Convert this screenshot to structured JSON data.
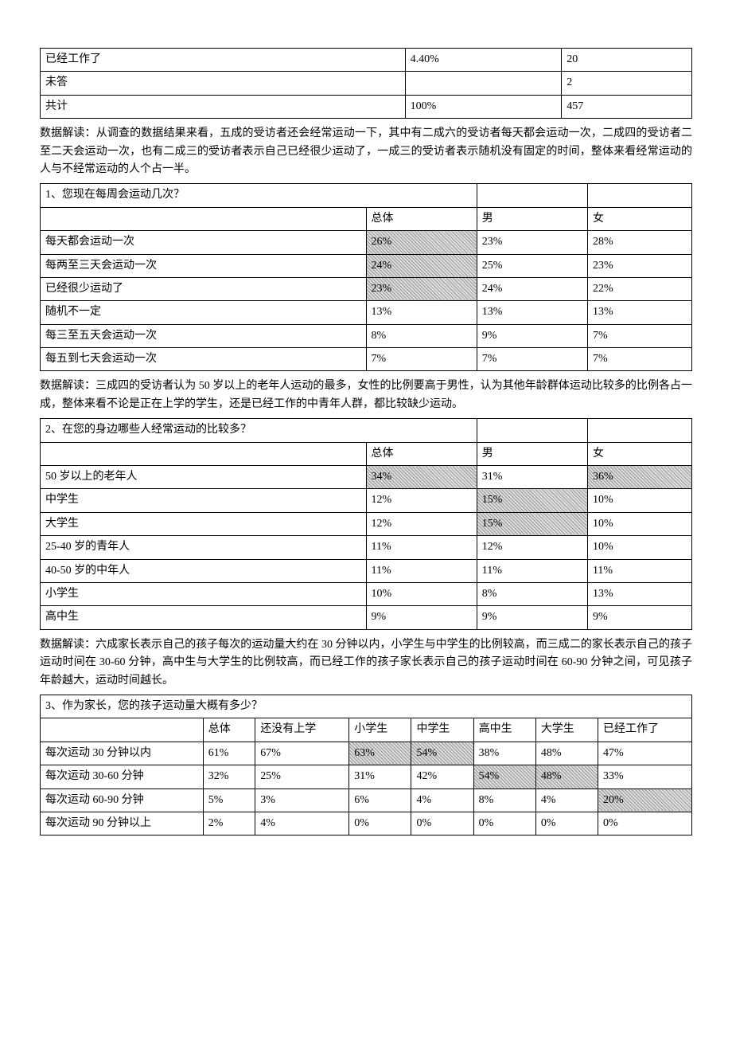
{
  "table1": {
    "rows": [
      {
        "c1": "已经工作了",
        "c2": "4.40%",
        "c3": "20"
      },
      {
        "c1": "未答",
        "c2": "",
        "c3": "2"
      },
      {
        "c1": "共计",
        "c2": "100%",
        "c3": "457"
      }
    ]
  },
  "para1": "数据解读：从调查的数据结果来看，五成的受访者还会经常运动一下，其中有二成六的受访者每天都会运动一次，二成四的受访者二至二天会运动一次，也有二成三的受访者表示自己已经很少运动了，一成三的受访者表示随机没有固定的时间，整体来看经常运动的人与不经常运动的人个占一半。",
  "table2": {
    "title": "1、您现在每周会运动几次？",
    "header": {
      "c2": "总体",
      "c3": "男",
      "c4": "女"
    },
    "rows": [
      {
        "c1": "每天都会运动一次",
        "c2": "26%",
        "c3": "23%",
        "c4": "28%",
        "shade": [
          "c2"
        ]
      },
      {
        "c1": "每两至三天会运动一次",
        "c2": "24%",
        "c3": "25%",
        "c4": "23%",
        "shade": [
          "c2"
        ]
      },
      {
        "c1": "已经很少运动了",
        "c2": "23%",
        "c3": "24%",
        "c4": "22%",
        "shade": [
          "c2"
        ]
      },
      {
        "c1": "随机不一定",
        "c2": "13%",
        "c3": "13%",
        "c4": "13%",
        "shade": []
      },
      {
        "c1": "每三至五天会运动一次",
        "c2": "8%",
        "c3": "9%",
        "c4": "7%",
        "shade": []
      },
      {
        "c1": "每五到七天会运动一次",
        "c2": "7%",
        "c3": "7%",
        "c4": "7%",
        "shade": []
      }
    ]
  },
  "para2": "数据解读：三成四的受访者认为 50 岁以上的老年人运动的最多，女性的比例要高于男性，认为其他年龄群体运动比较多的比例各占一成，整体来看不论是正在上学的学生，还是已经工作的中青年人群，都比较缺少运动。",
  "table3": {
    "title": "2、在您的身边哪些人经常运动的比较多？",
    "header": {
      "c2": "总体",
      "c3": "男",
      "c4": "女"
    },
    "rows": [
      {
        "c1": "50 岁以上的老年人",
        "c2": "34%",
        "c3": "31%",
        "c4": "36%",
        "shade": [
          "c2",
          "c4"
        ]
      },
      {
        "c1": "中学生",
        "c2": "12%",
        "c3": "15%",
        "c4": "10%",
        "shade": [
          "c3"
        ]
      },
      {
        "c1": "大学生",
        "c2": "12%",
        "c3": "15%",
        "c4": "10%",
        "shade": [
          "c3"
        ]
      },
      {
        "c1": "25-40 岁的青年人",
        "c2": "11%",
        "c3": "12%",
        "c4": "10%",
        "shade": []
      },
      {
        "c1": "40-50 岁的中年人",
        "c2": "11%",
        "c3": "11%",
        "c4": "11%",
        "shade": []
      },
      {
        "c1": "小学生",
        "c2": "10%",
        "c3": "8%",
        "c4": "13%",
        "shade": []
      },
      {
        "c1": "高中生",
        "c2": "9%",
        "c3": "9%",
        "c4": "9%",
        "shade": []
      }
    ]
  },
  "para3": "数据解读：六成家长表示自己的孩子每次的运动量大约在 30 分钟以内，小学生与中学生的比例较高，而三成二的家长表示自己的孩子运动时间在 30-60 分钟，高中生与大学生的比例较高，而已经工作的孩子家长表示自己的孩子运动时间在 60-90 分钟之间，可见孩子年龄越大，运动时间越长。",
  "table4": {
    "title": "3、作为家长，您的孩子运动量大概有多少？",
    "header": [
      "",
      "总体",
      "还没有上学",
      "小学生",
      "中学生",
      "高中生",
      "大学生",
      "已经工作了"
    ],
    "rows": [
      {
        "cells": [
          "每次运动 30 分钟以内",
          "61%",
          "67%",
          "63%",
          "54%",
          "38%",
          "48%",
          "47%"
        ],
        "shade": [
          3,
          4
        ]
      },
      {
        "cells": [
          "每次运动 30-60 分钟",
          "32%",
          "25%",
          "31%",
          "42%",
          "54%",
          "48%",
          "33%"
        ],
        "shade": [
          5,
          6
        ]
      },
      {
        "cells": [
          "每次运动 60-90 分钟",
          "5%",
          "3%",
          "6%",
          "4%",
          "8%",
          "4%",
          "20%"
        ],
        "shade": [
          7
        ]
      },
      {
        "cells": [
          "每次运动 90 分钟以上",
          "2%",
          "4%",
          "0%",
          "0%",
          "0%",
          "0%",
          "0%"
        ],
        "shade": []
      }
    ]
  }
}
